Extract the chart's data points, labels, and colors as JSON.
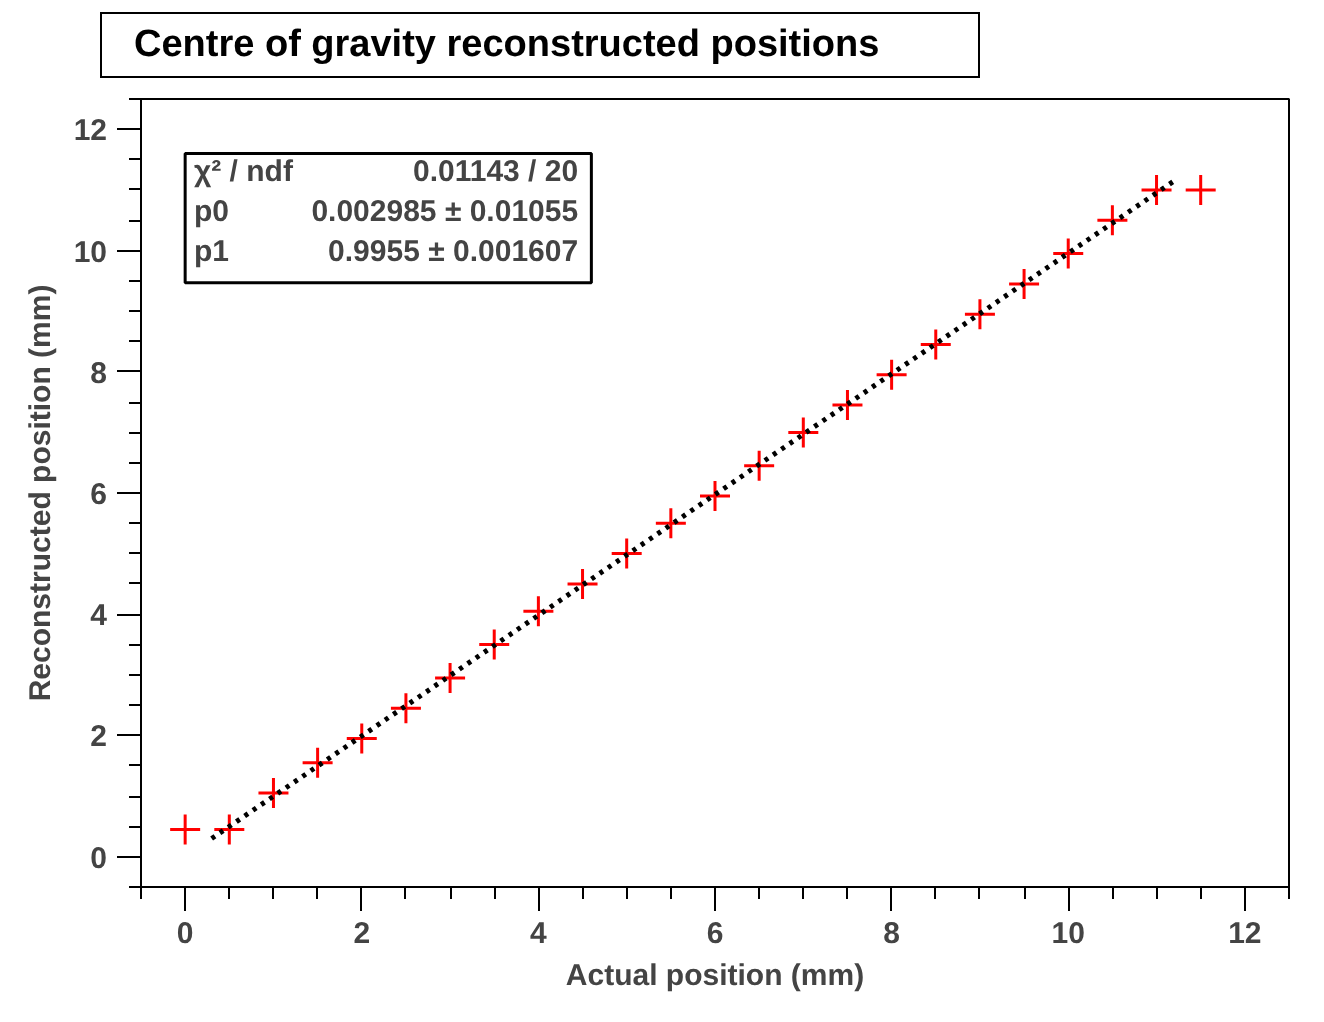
{
  "chart_data": {
    "type": "scatter",
    "title": "Centre of gravity reconstructed positions",
    "xlabel": "Actual position (mm)",
    "ylabel": "Reconstructed position (mm)",
    "xlim": [
      -0.5,
      12.5
    ],
    "ylim": [
      -0.5,
      12.5
    ],
    "xticks": [
      0,
      2,
      4,
      6,
      8,
      10,
      12
    ],
    "yticks": [
      0,
      2,
      4,
      6,
      8,
      10,
      12
    ],
    "grid": false,
    "marker": "cross",
    "series": [
      {
        "color": "#ff0000",
        "x": [
          0,
          0.5,
          1,
          1.5,
          2,
          2.5,
          3,
          3.5,
          4,
          4.5,
          5,
          5.5,
          6,
          6.5,
          7,
          7.5,
          8,
          8.5,
          9,
          9.5,
          10,
          10.5,
          11,
          11.5
        ],
        "values": [
          0.45,
          0.45,
          1.05,
          1.55,
          1.95,
          2.45,
          2.95,
          3.5,
          4.05,
          4.5,
          5.0,
          5.5,
          5.95,
          6.45,
          7.0,
          7.45,
          7.95,
          8.45,
          8.95,
          9.45,
          9.95,
          10.5,
          11.0,
          11.0
        ]
      },
      {
        "type": "line",
        "color": "#000000",
        "line_style": "dotted",
        "marker": "none",
        "x": [
          0.3,
          11.2
        ],
        "values": [
          0.3,
          11.15
        ]
      }
    ],
    "annotations": [
      "χ² / ndf",
      "0.01143 / 20",
      "p0",
      "0.002985 ± 0.01055",
      "p1",
      "0.9955 ± 0.001607"
    ]
  }
}
